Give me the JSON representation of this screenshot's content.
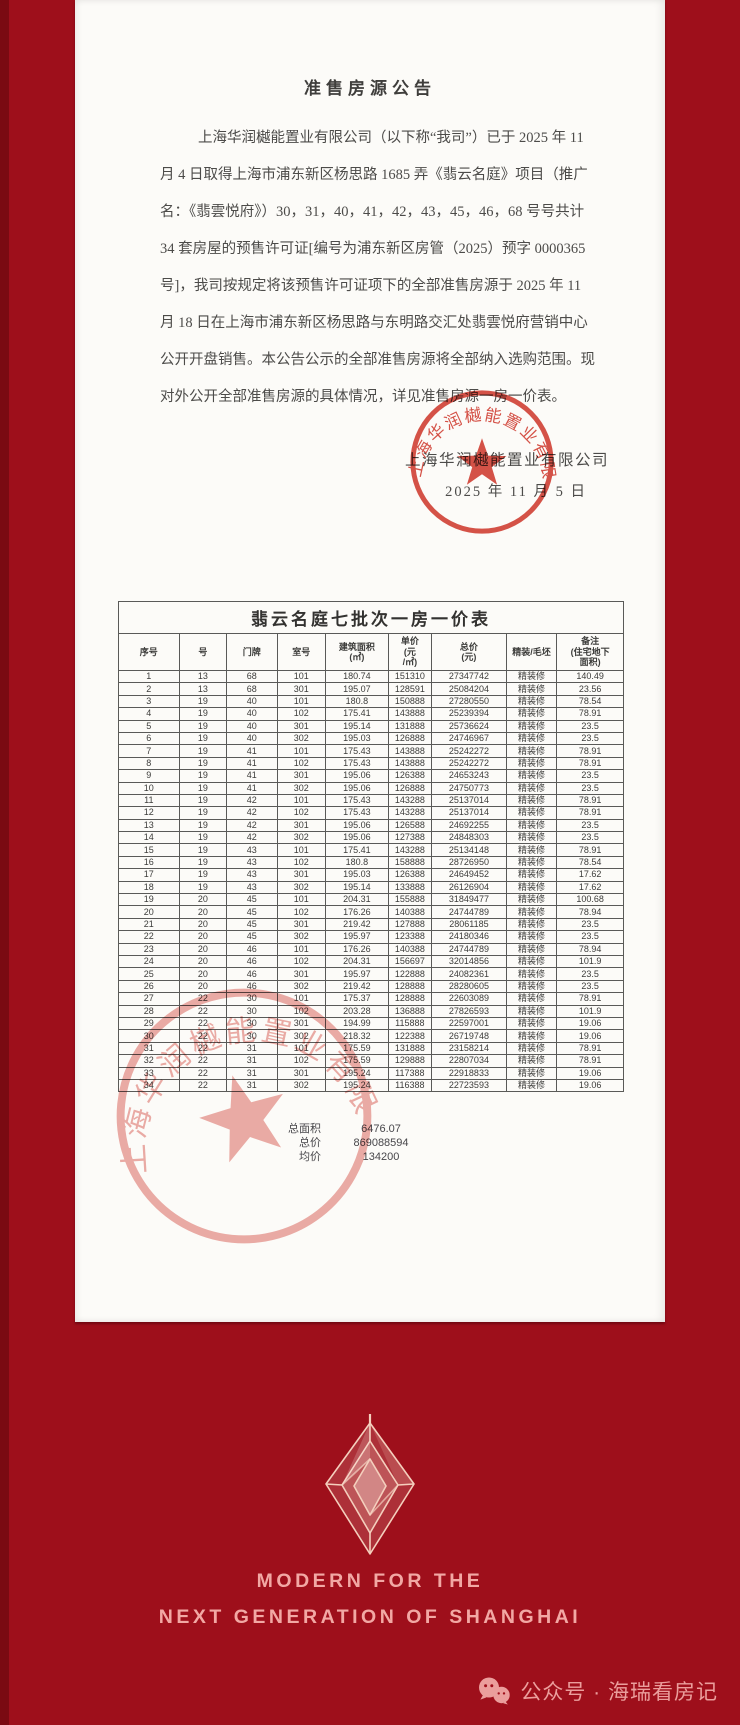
{
  "page": {
    "bg_color": "#9e0f1b",
    "card_color": "#fcfbf8",
    "seal_color": "#d23b30",
    "accent_pink": "#f2a8a4"
  },
  "announcement": {
    "title": "准售房源公告",
    "paragraph_lines": [
      "上海华润樾能置业有限公司（以下称“我司”）已于 2025 年 11",
      "月 4 日取得上海市浦东新区杨思路 1685 弄《翡云名庭》项目（推广",
      "名：《翡雲悦府》）30，31，40，41，42，43，45，46，68 号号共计",
      "34 套房屋的预售许可证[编号为浦东新区房管（2025）预字 0000365",
      "号]，我司按规定将该预售许可证项下的全部准售房源于 2025 年 11",
      "月 18 日在上海市浦东新区杨思路与东明路交汇处翡雲悦府营销中心",
      "公开开盘销售。本公告公示的全部准售房源将全部纳入选购范围。现",
      "对外公开全部准售房源的具体情况，详见准售房源一房一价表。"
    ],
    "signature_company": "上海华润樾能置业有限公司",
    "signature_date": "2025 年 11 月 5 日",
    "seal_text": "上海华润樾能置业有限公司"
  },
  "table": {
    "title": "翡云名庭七批次一房一价表",
    "headers": [
      [
        "序号"
      ],
      [
        "号"
      ],
      [
        "门牌"
      ],
      [
        "室号"
      ],
      [
        "建筑面积",
        "(㎡)"
      ],
      [
        "单价",
        "(元",
        "/㎡)"
      ],
      [
        "总价",
        "(元)"
      ],
      [
        "精装/毛坯"
      ],
      [
        "备注",
        "(住宅地下",
        "面积)"
      ]
    ],
    "rows": [
      [
        "1",
        "13",
        "68",
        "101",
        "180.74",
        "151310",
        "27347742",
        "精装修",
        "140.49"
      ],
      [
        "2",
        "13",
        "68",
        "301",
        "195.07",
        "128591",
        "25084204",
        "精装修",
        "23.56"
      ],
      [
        "3",
        "19",
        "40",
        "101",
        "180.8",
        "150888",
        "27280550",
        "精装修",
        "78.54"
      ],
      [
        "4",
        "19",
        "40",
        "102",
        "175.41",
        "143888",
        "25239394",
        "精装修",
        "78.91"
      ],
      [
        "5",
        "19",
        "40",
        "301",
        "195.14",
        "131888",
        "25736624",
        "精装修",
        "23.5"
      ],
      [
        "6",
        "19",
        "40",
        "302",
        "195.03",
        "126888",
        "24746967",
        "精装修",
        "23.5"
      ],
      [
        "7",
        "19",
        "41",
        "101",
        "175.43",
        "143888",
        "25242272",
        "精装修",
        "78.91"
      ],
      [
        "8",
        "19",
        "41",
        "102",
        "175.43",
        "143888",
        "25242272",
        "精装修",
        "78.91"
      ],
      [
        "9",
        "19",
        "41",
        "301",
        "195.06",
        "126388",
        "24653243",
        "精装修",
        "23.5"
      ],
      [
        "10",
        "19",
        "41",
        "302",
        "195.06",
        "126888",
        "24750773",
        "精装修",
        "23.5"
      ],
      [
        "11",
        "19",
        "42",
        "101",
        "175.43",
        "143288",
        "25137014",
        "精装修",
        "78.91"
      ],
      [
        "12",
        "19",
        "42",
        "102",
        "175.43",
        "143288",
        "25137014",
        "精装修",
        "78.91"
      ],
      [
        "13",
        "19",
        "42",
        "301",
        "195.06",
        "126588",
        "24692255",
        "精装修",
        "23.5"
      ],
      [
        "14",
        "19",
        "42",
        "302",
        "195.06",
        "127388",
        "24848303",
        "精装修",
        "23.5"
      ],
      [
        "15",
        "19",
        "43",
        "101",
        "175.41",
        "143288",
        "25134148",
        "精装修",
        "78.91"
      ],
      [
        "16",
        "19",
        "43",
        "102",
        "180.8",
        "158888",
        "28726950",
        "精装修",
        "78.54"
      ],
      [
        "17",
        "19",
        "43",
        "301",
        "195.03",
        "126388",
        "24649452",
        "精装修",
        "17.62"
      ],
      [
        "18",
        "19",
        "43",
        "302",
        "195.14",
        "133888",
        "26126904",
        "精装修",
        "17.62"
      ],
      [
        "19",
        "20",
        "45",
        "101",
        "204.31",
        "155888",
        "31849477",
        "精装修",
        "100.68"
      ],
      [
        "20",
        "20",
        "45",
        "102",
        "176.26",
        "140388",
        "24744789",
        "精装修",
        "78.94"
      ],
      [
        "21",
        "20",
        "45",
        "301",
        "219.42",
        "127888",
        "28061185",
        "精装修",
        "23.5"
      ],
      [
        "22",
        "20",
        "45",
        "302",
        "195.97",
        "123388",
        "24180346",
        "精装修",
        "23.5"
      ],
      [
        "23",
        "20",
        "46",
        "101",
        "176.26",
        "140388",
        "24744789",
        "精装修",
        "78.94"
      ],
      [
        "24",
        "20",
        "46",
        "102",
        "204.31",
        "156697",
        "32014856",
        "精装修",
        "101.9"
      ],
      [
        "25",
        "20",
        "46",
        "301",
        "195.97",
        "122888",
        "24082361",
        "精装修",
        "23.5"
      ],
      [
        "26",
        "20",
        "46",
        "302",
        "219.42",
        "128888",
        "28280605",
        "精装修",
        "23.5"
      ],
      [
        "27",
        "22",
        "30",
        "101",
        "175.37",
        "128888",
        "22603089",
        "精装修",
        "78.91"
      ],
      [
        "28",
        "22",
        "30",
        "102",
        "203.28",
        "136888",
        "27826593",
        "精装修",
        "101.9"
      ],
      [
        "29",
        "22",
        "30",
        "301",
        "194.99",
        "115888",
        "22597001",
        "精装修",
        "19.06"
      ],
      [
        "30",
        "22",
        "30",
        "302",
        "218.32",
        "122388",
        "26719748",
        "精装修",
        "19.06"
      ],
      [
        "31",
        "22",
        "31",
        "101",
        "175.59",
        "131888",
        "23158214",
        "精装修",
        "78.91"
      ],
      [
        "32",
        "22",
        "31",
        "102",
        "175.59",
        "129888",
        "22807034",
        "精装修",
        "78.91"
      ],
      [
        "33",
        "22",
        "31",
        "301",
        "195.24",
        "117388",
        "22918833",
        "精装修",
        "19.06"
      ],
      [
        "34",
        "22",
        "31",
        "302",
        "195.24",
        "116388",
        "22723593",
        "精装修",
        "19.06"
      ]
    ],
    "totals": [
      {
        "label": "总面积",
        "value": "6476.07"
      },
      {
        "label": "总价",
        "value": "869088594"
      },
      {
        "label": "均价",
        "value": "134200"
      }
    ]
  },
  "branding": {
    "tagline_line1": "MODERN FOR THE",
    "tagline_line2": "NEXT GENERATION OF SHANGHAI"
  },
  "footer": {
    "watermark": "公众号 · 海瑞看房记"
  }
}
